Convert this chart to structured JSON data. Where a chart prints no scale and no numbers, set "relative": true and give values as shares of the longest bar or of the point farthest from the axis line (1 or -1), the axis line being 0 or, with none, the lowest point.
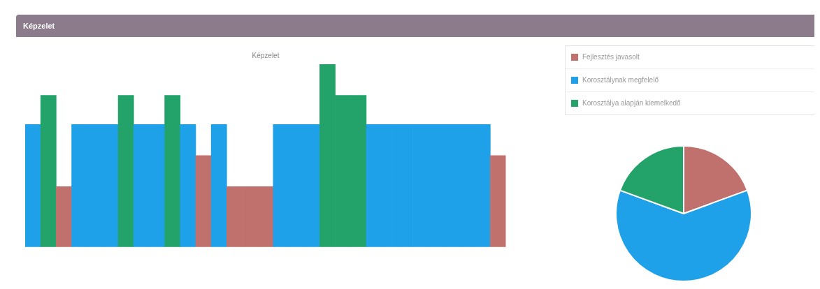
{
  "chart_data": [
    {
      "type": "bar",
      "title": "Képzelet",
      "annotations": [
        "Képzelet"
      ],
      "relative": true,
      "grid": false,
      "legend": false,
      "categories": [
        null,
        null,
        null,
        null,
        null,
        null,
        null,
        null,
        null,
        null,
        null,
        null,
        null,
        null,
        null,
        null,
        null,
        null,
        null,
        null,
        null,
        null,
        null,
        null,
        null,
        null,
        null,
        null,
        null,
        null,
        null
      ],
      "values": [
        0.67,
        0.83,
        0.33,
        0.67,
        0.67,
        0.67,
        0.83,
        0.67,
        0.67,
        0.83,
        0.67,
        0.5,
        0.67,
        0.33,
        0.33,
        0.33,
        0.67,
        0.67,
        0.67,
        1,
        0.83,
        0.83,
        0.67,
        0.67,
        0.67,
        0.67,
        0.67,
        0.67,
        0.67,
        0.67,
        0.5
      ],
      "colors": [
        "#1ea1e8",
        "#23a36a",
        "#c0706d",
        "#1ea1e8",
        "#1ea1e8",
        "#1ea1e8",
        "#23a36a",
        "#1ea1e8",
        "#1ea1e8",
        "#23a36a",
        "#1ea1e8",
        "#c0706d",
        "#1ea1e8",
        "#c0706d",
        "#c0706d",
        "#c0706d",
        "#1ea1e8",
        "#1ea1e8",
        "#1ea1e8",
        "#23a36a",
        "#23a36a",
        "#23a36a",
        "#1ea1e8",
        "#1ea1e8",
        "#1ea1e8",
        "#1ea1e8",
        "#1ea1e8",
        "#1ea1e8",
        "#1ea1e8",
        "#1ea1e8",
        "#c0706d"
      ]
    },
    {
      "type": "pie",
      "legend": "top",
      "categories": [
        "Fejlesztés javasolt",
        "Korosztálynak megfelelő",
        "Korosztálya alapján kiemelkedő"
      ],
      "values": [
        19.4,
        61.2,
        19.4
      ],
      "colors": [
        "#c0706d",
        "#1ea1e8",
        "#23a36a"
      ]
    }
  ]
}
